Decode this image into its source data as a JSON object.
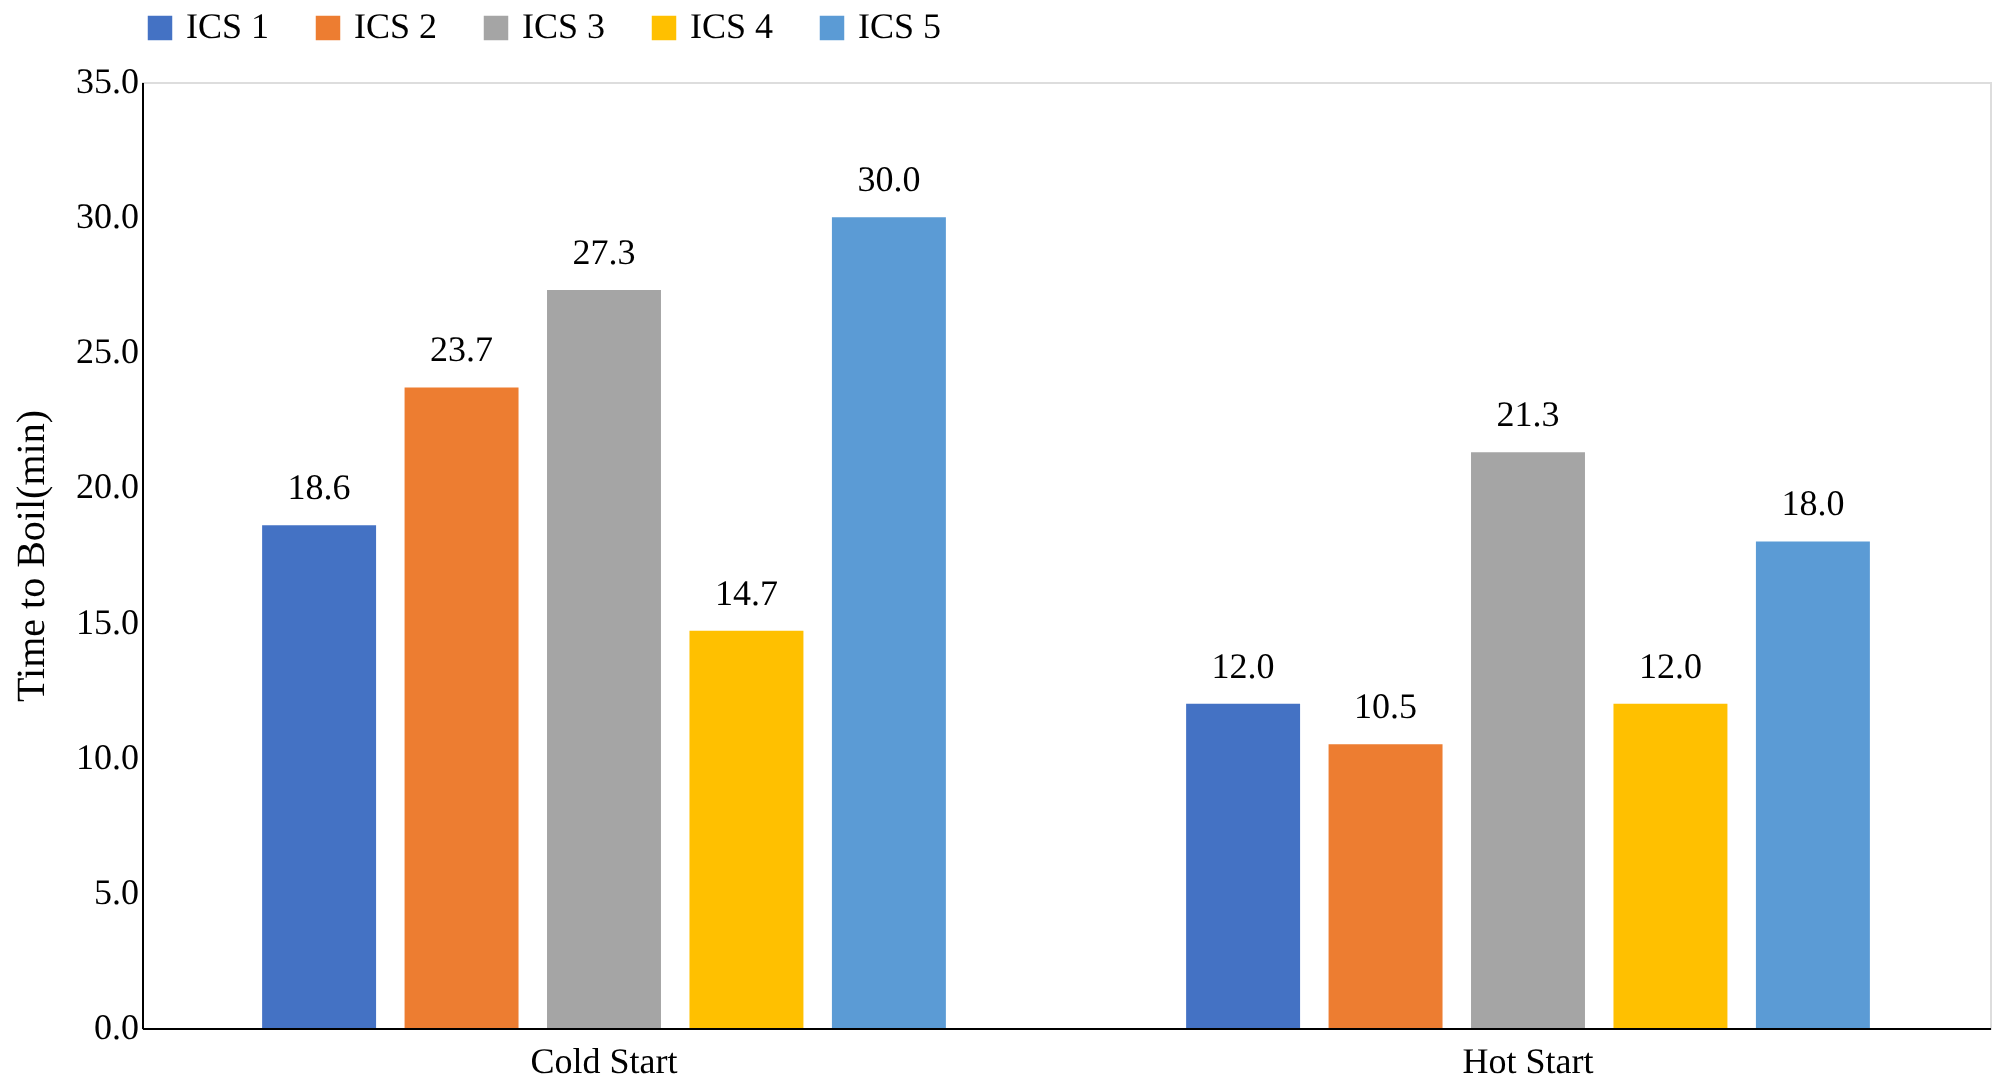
{
  "chart_data": {
    "type": "bar",
    "ylabel": "Time to Boil(min)",
    "categories": [
      "Cold Start",
      "Hot Start"
    ],
    "series": [
      {
        "name": "ICS 1",
        "color": "#4472c4",
        "values": [
          18.6,
          12.0
        ],
        "value_labels": [
          "18.6",
          "12.0"
        ]
      },
      {
        "name": "ICS 2",
        "color": "#ed7d31",
        "values": [
          23.7,
          10.5
        ],
        "value_labels": [
          "23.7",
          "10.5"
        ]
      },
      {
        "name": "ICS 3",
        "color": "#a5a5a5",
        "values": [
          27.3,
          21.3
        ],
        "value_labels": [
          "27.3",
          "21.3"
        ]
      },
      {
        "name": "ICS 4",
        "color": "#ffc000",
        "values": [
          14.7,
          12.0
        ],
        "value_labels": [
          "14.7",
          "12.0"
        ]
      },
      {
        "name": "ICS 5",
        "color": "#5b9bd5",
        "values": [
          30.0,
          18.0
        ],
        "value_labels": [
          "30.0",
          "18.0"
        ]
      }
    ],
    "ylim": [
      0,
      35
    ],
    "yticks": [
      {
        "value": 0,
        "label": "0.0"
      },
      {
        "value": 5,
        "label": "5.0"
      },
      {
        "value": 10,
        "label": "10.0"
      },
      {
        "value": 15,
        "label": "15.0"
      },
      {
        "value": 20,
        "label": "20.0"
      },
      {
        "value": 25,
        "label": "25.0"
      },
      {
        "value": 30,
        "label": "30.0"
      },
      {
        "value": 35,
        "label": "35.0"
      }
    ],
    "grid": false,
    "legend": "top"
  }
}
